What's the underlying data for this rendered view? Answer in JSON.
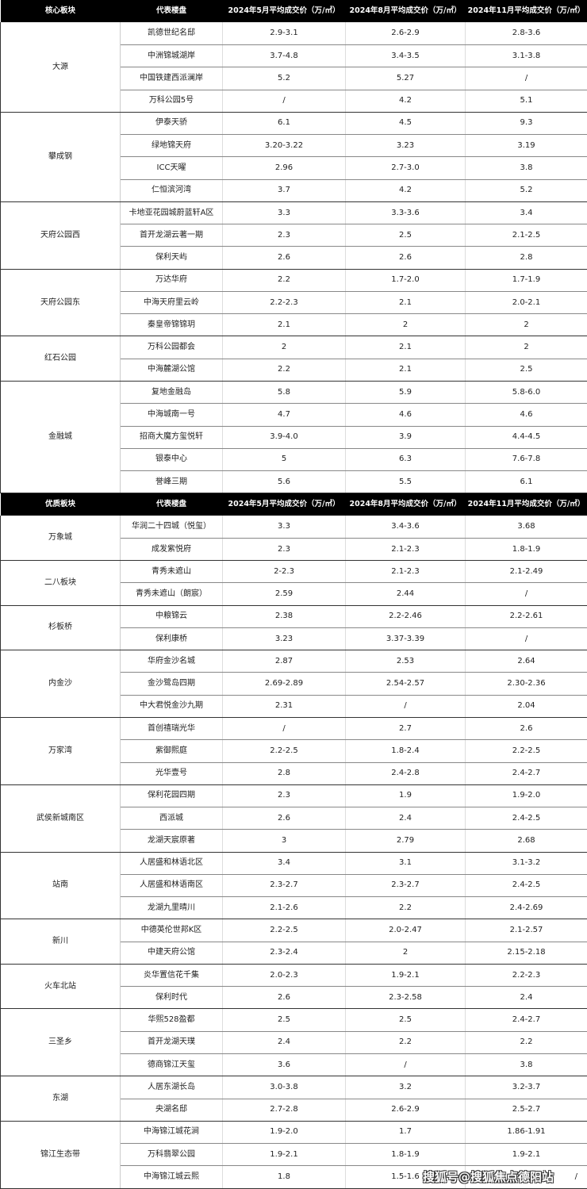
{
  "tables": [
    {
      "headers": [
        "核心板块",
        "代表楼盘",
        "2024年5月平均成交价（万/㎡）",
        "2024年8月平均成交价（万/㎡）",
        "2024年11月平均成交价（万/㎡）"
      ],
      "groups": [
        {
          "name": "大源",
          "rows": [
            [
              "凯德世纪名邸",
              "2.9-3.1",
              "2.6-2.9",
              "2.8-3.6"
            ],
            [
              "中洲锦城湖岸",
              "3.7-4.8",
              "3.4-3.5",
              "3.1-3.8"
            ],
            [
              "中国铁建西派澜岸",
              "5.2",
              "5.27",
              "/"
            ],
            [
              "万科公园5号",
              "/",
              "4.2",
              "5.1"
            ]
          ]
        },
        {
          "name": "攀成钢",
          "rows": [
            [
              "伊泰天骄",
              "6.1",
              "4.5",
              "9.3"
            ],
            [
              "绿地锦天府",
              "3.20-3.22",
              "3.23",
              "3.19"
            ],
            [
              "ICC天曜",
              "2.96",
              "2.7-3.0",
              "3.8"
            ],
            [
              "仁恒滨河湾",
              "3.7",
              "4.2",
              "5.2"
            ]
          ]
        },
        {
          "name": "天府公园西",
          "rows": [
            [
              "卡地亚花园城蔚蓝轩A区",
              "3.3",
              "3.3-3.6",
              "3.4"
            ],
            [
              "首开龙湖云著一期",
              "2.3",
              "2.5",
              "2.1-2.5"
            ],
            [
              "保利天屿",
              "2.6",
              "2.6",
              "2.8"
            ]
          ]
        },
        {
          "name": "天府公园东",
          "rows": [
            [
              "万达华府",
              "2.2",
              "1.7-2.0",
              "1.7-1.9"
            ],
            [
              "中海天府里云岭",
              "2.2-2.3",
              "2.1",
              "2.0-2.1"
            ],
            [
              "秦皇帝锦锦玥",
              "2.1",
              "2",
              "2"
            ]
          ]
        },
        {
          "name": "红石公园",
          "rows": [
            [
              "万科公园都会",
              "2",
              "2.1",
              "2"
            ],
            [
              "中海麓湖公馆",
              "2.2",
              "2.1",
              "2.5"
            ]
          ]
        },
        {
          "name": "金融城",
          "rows": [
            [
              "复地金融岛",
              "5.8",
              "5.9",
              "5.8-6.0"
            ],
            [
              "中海城南一号",
              "4.7",
              "4.6",
              "4.6"
            ],
            [
              "招商大魔方玺悦轩",
              "3.9-4.0",
              "3.9",
              "4.4-4.5"
            ],
            [
              "银泰中心",
              "5",
              "6.3",
              "7.6-7.8"
            ],
            [
              "誉峰三期",
              "5.6",
              "5.5",
              "6.1"
            ]
          ]
        }
      ]
    },
    {
      "headers": [
        "优质板块",
        "代表楼盘",
        "2024年5月平均成交价（万/㎡）",
        "2024年8月平均成交价（万/㎡）",
        "2024年11月平均成交价（万/㎡）"
      ],
      "groups": [
        {
          "name": "万象城",
          "rows": [
            [
              "华润二十四城（悦玺）",
              "3.3",
              "3.4-3.6",
              "3.68"
            ],
            [
              "成发紫悦府",
              "2.3",
              "2.1-2.3",
              "1.8-1.9"
            ]
          ]
        },
        {
          "name": "二八板块",
          "rows": [
            [
              "青秀未遮山",
              "2-2.3",
              "2.1-2.3",
              "2.1-2.49"
            ],
            [
              "青秀未遮山（朗宸）",
              "2.59",
              "2.44",
              "/"
            ]
          ]
        },
        {
          "name": "杉板桥",
          "rows": [
            [
              "中粮锦云",
              "2.38",
              "2.2-2.46",
              "2.2-2.61"
            ],
            [
              "保利康桥",
              "3.23",
              "3.37-3.39",
              "/"
            ]
          ]
        },
        {
          "name": "内金沙",
          "rows": [
            [
              "华府金沙名城",
              "2.87",
              "2.53",
              "2.64"
            ],
            [
              "金沙鹭岛四期",
              "2.69-2.89",
              "2.54-2.57",
              "2.30-2.36"
            ],
            [
              "中大君悦金沙九期",
              "2.31",
              "/",
              "2.04"
            ]
          ]
        },
        {
          "name": "万家湾",
          "rows": [
            [
              "首创禧瑞光华",
              "/",
              "2.7",
              "2.6"
            ],
            [
              "紫御熙庭",
              "2.2-2.5",
              "1.8-2.4",
              "2.2-2.5"
            ],
            [
              "光华壹号",
              "2.8",
              "2.4-2.8",
              "2.4-2.7"
            ]
          ]
        },
        {
          "name": "武侯新城南区",
          "rows": [
            [
              "保利花园四期",
              "2.3",
              "1.9",
              "1.9-2.0"
            ],
            [
              "西派城",
              "2.6",
              "2.4",
              "2.4-2.5"
            ],
            [
              "龙湖天宸原著",
              "3",
              "2.79",
              "2.68"
            ]
          ]
        },
        {
          "name": "站南",
          "rows": [
            [
              "人居盛和林语北区",
              "3.4",
              "3.1",
              "3.1-3.2"
            ],
            [
              "人居盛和林语南区",
              "2.3-2.7",
              "2.3-2.7",
              "2.4-2.5"
            ],
            [
              "龙湖九里晴川",
              "2.1-2.6",
              "2.2",
              "2.4-2.69"
            ]
          ]
        },
        {
          "name": "新川",
          "rows": [
            [
              "中德英伦世邦K区",
              "2.2-2.5",
              "2.0-2.47",
              "2.1-2.57"
            ],
            [
              "中建天府公馆",
              "2.3-2.4",
              "2",
              "2.15-2.18"
            ]
          ]
        },
        {
          "name": "火车北站",
          "rows": [
            [
              "炎华置信花千集",
              "2.0-2.3",
              "1.9-2.1",
              "2.2-2.3"
            ],
            [
              "保利时代",
              "2.6",
              "2.3-2.58",
              "2.4"
            ]
          ]
        },
        {
          "name": "三圣乡",
          "rows": [
            [
              "华熙528盈都",
              "2.5",
              "2.5",
              "2.4-2.7"
            ],
            [
              "首开龙湖天璞",
              "2.4",
              "2.2",
              "2.2"
            ],
            [
              "德商锦江天玺",
              "3.6",
              "/",
              "3.8"
            ]
          ]
        },
        {
          "name": "东湖",
          "rows": [
            [
              "人居东湖长岛",
              "3.0-3.8",
              "3.2",
              "3.2-3.7"
            ],
            [
              "央湖名邸",
              "2.7-2.8",
              "2.6-2.9",
              "2.5-2.7"
            ]
          ]
        },
        {
          "name": "锦江生态带",
          "rows": [
            [
              "中海锦江城花涧",
              "1.9-2.0",
              "1.7",
              "1.86-1.91"
            ],
            [
              "万科翡翠公园",
              "1.9-2.1",
              "1.8-1.9",
              "1.9-2.1"
            ],
            [
              "中海锦江城云熙",
              "1.8",
              "1.5-1.6",
              "/"
            ]
          ]
        }
      ]
    }
  ],
  "watermark": "搜狐号@搜狐焦点德阳站"
}
